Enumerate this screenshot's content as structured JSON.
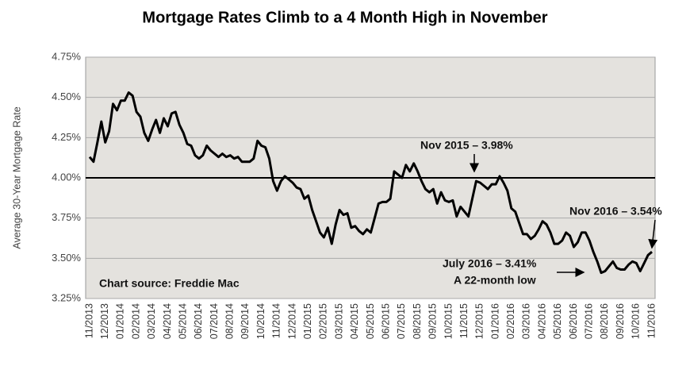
{
  "chart_data": {
    "type": "line",
    "title": "Mortgage Rates Climb to a 4 Month High in November",
    "y_label": "Average 30-Year Mortgage Rate",
    "categories": [
      "11/2013",
      null,
      null,
      null,
      "12/2013",
      null,
      null,
      null,
      "01/2014",
      null,
      null,
      null,
      "02/2014",
      null,
      null,
      null,
      "03/2014",
      null,
      null,
      null,
      "04/2014",
      null,
      null,
      null,
      "05/2014",
      null,
      null,
      null,
      "06/2014",
      null,
      null,
      null,
      "07/2014",
      null,
      null,
      null,
      "08/2014",
      null,
      null,
      null,
      "09/2014",
      null,
      null,
      null,
      "10/2014",
      null,
      null,
      null,
      "11/2014",
      null,
      null,
      null,
      "12/2014",
      null,
      null,
      null,
      "01/2015",
      null,
      null,
      null,
      "02/2015",
      null,
      null,
      null,
      "03/2015",
      null,
      null,
      null,
      "04/2015",
      null,
      null,
      null,
      "05/2015",
      null,
      null,
      null,
      "06/2015",
      null,
      null,
      null,
      "07/2015",
      null,
      null,
      null,
      "08/2015",
      null,
      null,
      null,
      "09/2015",
      null,
      null,
      null,
      "10/2015",
      null,
      null,
      null,
      "11/2015",
      null,
      null,
      null,
      "12/2015",
      null,
      null,
      null,
      "01/2016",
      null,
      null,
      null,
      "02/2016",
      null,
      null,
      null,
      "03/2016",
      null,
      null,
      null,
      "04/2016",
      null,
      null,
      null,
      "05/2016",
      null,
      null,
      null,
      "06/2016",
      null,
      null,
      null,
      "07/2016",
      null,
      null,
      null,
      "08/2016",
      null,
      null,
      null,
      "09/2016",
      null,
      null,
      null,
      "10/2016",
      null,
      null,
      null,
      "11/2016"
    ],
    "series": [
      {
        "name": "30-Year Mortgage Rate",
        "color": "#000000",
        "values": [
          4.13,
          4.1,
          4.22,
          4.35,
          4.22,
          4.29,
          4.46,
          4.42,
          4.48,
          4.48,
          4.53,
          4.51,
          4.41,
          4.38,
          4.28,
          4.23,
          4.3,
          4.36,
          4.28,
          4.37,
          4.32,
          4.4,
          4.41,
          4.33,
          4.28,
          4.21,
          4.2,
          4.14,
          4.12,
          4.14,
          4.2,
          4.17,
          4.15,
          4.13,
          4.15,
          4.13,
          4.14,
          4.12,
          4.13,
          4.1,
          4.1,
          4.1,
          4.12,
          4.23,
          4.2,
          4.19,
          4.12,
          3.98,
          3.92,
          3.98,
          4.01,
          3.99,
          3.97,
          3.94,
          3.93,
          3.87,
          3.89,
          3.8,
          3.73,
          3.66,
          3.63,
          3.69,
          3.59,
          3.71,
          3.8,
          3.77,
          3.78,
          3.69,
          3.7,
          3.67,
          3.65,
          3.68,
          3.66,
          3.75,
          3.84,
          3.85,
          3.85,
          3.87,
          4.04,
          4.02,
          4.0,
          4.08,
          4.04,
          4.09,
          4.04,
          3.98,
          3.93,
          3.91,
          3.93,
          3.84,
          3.91,
          3.86,
          3.85,
          3.86,
          3.76,
          3.82,
          3.79,
          3.76,
          3.87,
          3.98,
          3.97,
          3.95,
          3.93,
          3.96,
          3.96,
          4.01,
          3.97,
          3.92,
          3.81,
          3.79,
          3.72,
          3.65,
          3.65,
          3.62,
          3.64,
          3.68,
          3.73,
          3.71,
          3.66,
          3.59,
          3.59,
          3.61,
          3.66,
          3.64,
          3.57,
          3.6,
          3.66,
          3.66,
          3.61,
          3.54,
          3.48,
          3.41,
          3.42,
          3.45,
          3.48,
          3.44,
          3.43,
          3.43,
          3.46,
          3.48,
          3.47,
          3.42,
          3.47,
          3.52,
          3.54
        ]
      }
    ],
    "ylim": [
      3.25,
      4.75
    ],
    "yticks": [
      {
        "value": 3.25,
        "label": "3.25%"
      },
      {
        "value": 3.5,
        "label": "3.50%"
      },
      {
        "value": 3.75,
        "label": "3.75%"
      },
      {
        "value": 4,
        "label": "4.00%"
      },
      {
        "value": 4.25,
        "label": "4.25%"
      },
      {
        "value": 4.5,
        "label": "4.50%"
      },
      {
        "value": 4.75,
        "label": "4.75%"
      }
    ],
    "grid": true,
    "reference_line": 4,
    "annotations": [
      "Nov 2015 – 3.98%",
      "Nov 2016 – 3.54%",
      "July 2016 – 3.41%",
      "A 22-month low",
      "Chart source:  Freddie Mac"
    ]
  }
}
